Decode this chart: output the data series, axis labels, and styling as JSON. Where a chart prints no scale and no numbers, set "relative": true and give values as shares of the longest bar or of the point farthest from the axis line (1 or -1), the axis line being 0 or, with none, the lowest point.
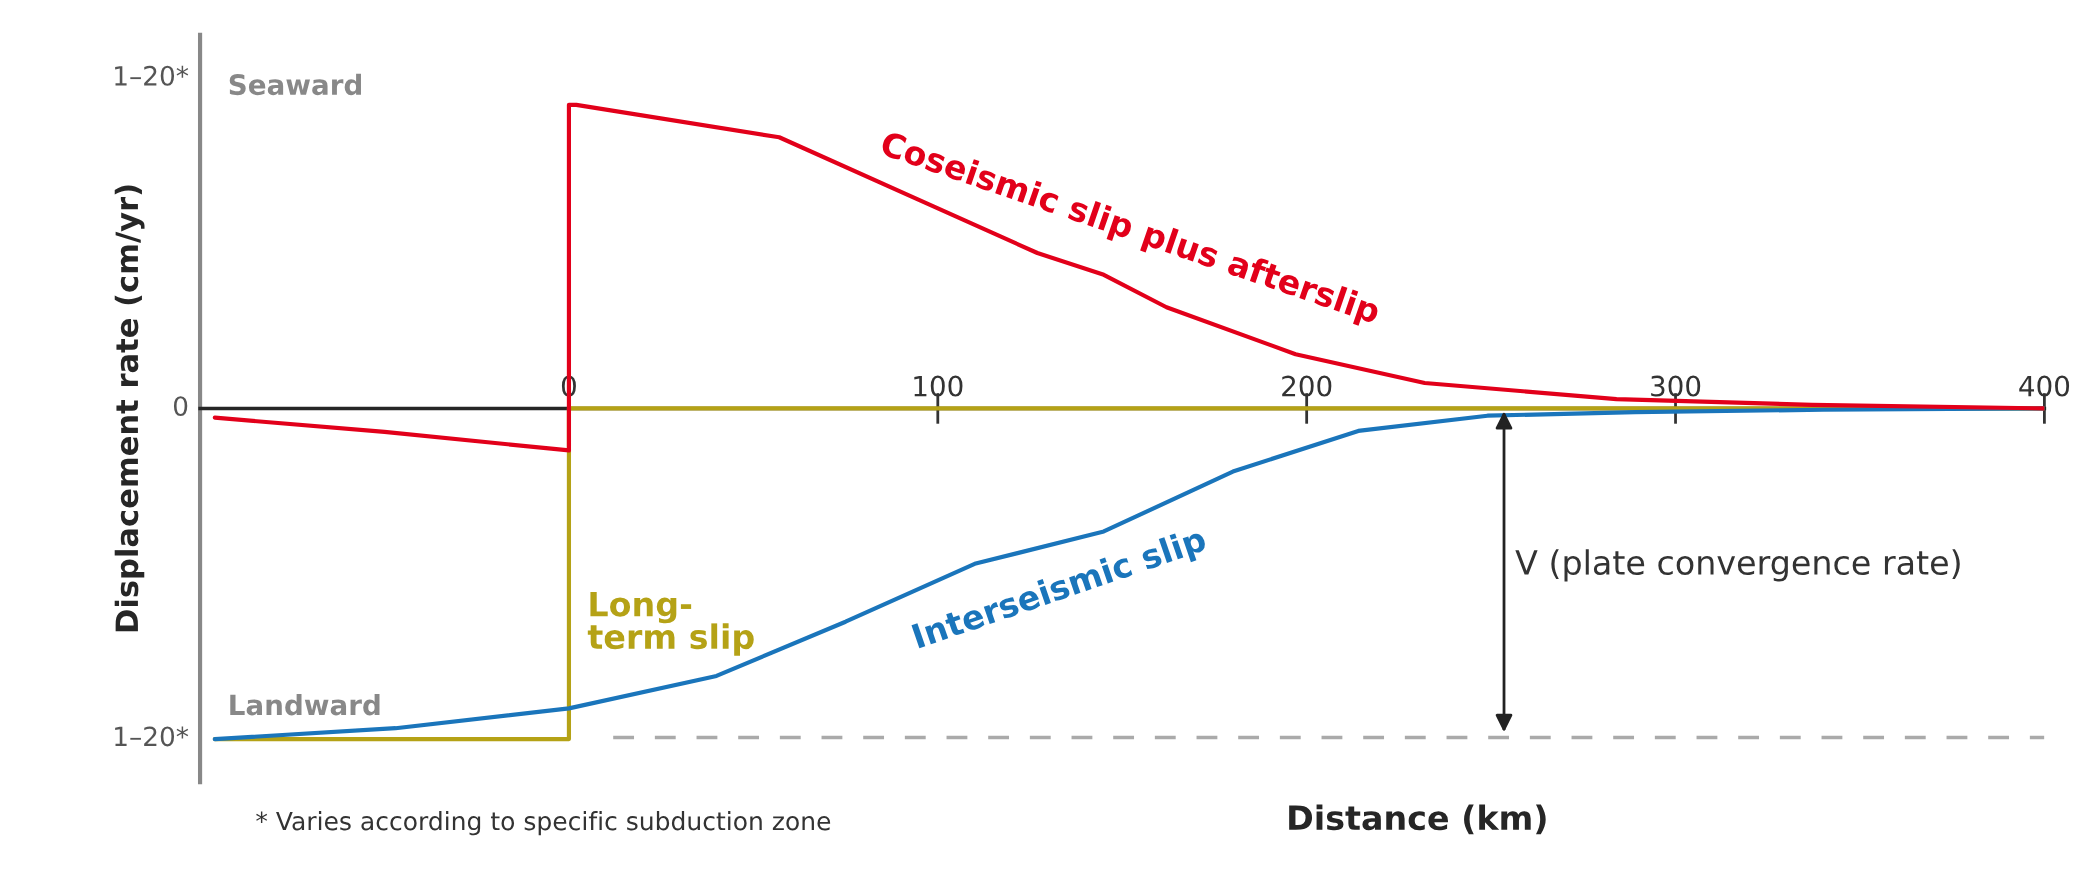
{
  "chart_data": {
    "type": "line",
    "relative": true,
    "xlabel": "Distance (km)",
    "ylabel": "Displacement rate (cm/yr)",
    "xlim": [
      -100,
      400
    ],
    "xticks": [
      0,
      100,
      200,
      300,
      400
    ],
    "grid": false,
    "legend": false,
    "line_style": "solid",
    "marker": "none",
    "series": [
      {
        "name": "Coseismic slip plus afterslip",
        "color": "#e2001a",
        "x": [
          -96,
          -50,
          0,
          0,
          2,
          57,
          92,
          127,
          145,
          162,
          197,
          232,
          284,
          337,
          400
        ],
        "values": [
          -0.028,
          -0.071,
          -0.127,
          0.918,
          0.918,
          0.82,
          0.645,
          0.47,
          0.404,
          0.306,
          0.164,
          0.077,
          0.028,
          0.011,
          0
        ]
      },
      {
        "name": "Interseismic slip",
        "color": "#1a75bb",
        "x": [
          -96,
          -47,
          0,
          40,
          75,
          110,
          145,
          180,
          214,
          249,
          289,
          340,
          400
        ],
        "values": [
          -1,
          -0.967,
          -0.907,
          -0.809,
          -0.645,
          -0.47,
          -0.372,
          -0.191,
          -0.068,
          -0.022,
          -0.011,
          -0.004,
          0
        ]
      },
      {
        "name": "Long-\nterm slip",
        "color": "#b5a216",
        "x": [
          -96,
          0,
          0,
          400
        ],
        "values": [
          -1,
          -1,
          0,
          0
        ]
      },
      {
        "color": "#aaaaaa",
        "line_style": "dashed",
        "x": [
          12,
          400
        ],
        "values": [
          -0.995,
          -0.995
        ]
      }
    ],
    "annotations": [
      "1–20*",
      "0",
      "1–20*",
      "Seaward",
      "Landward",
      "* Varies according to specific subduction zone",
      "V (plate convergence rate)"
    ]
  }
}
